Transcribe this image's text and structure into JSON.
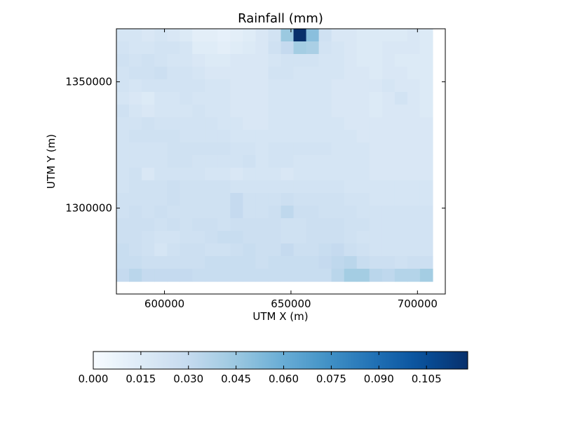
{
  "chart_data": {
    "type": "heatmap",
    "title": "Rainfall (mm)",
    "xlabel": "UTM X (m)",
    "ylabel": "UTM Y (m)",
    "x_ticks": [
      600000,
      650000,
      700000
    ],
    "x_tick_labels": [
      "600000",
      "650000",
      "700000"
    ],
    "y_ticks": [
      1300000,
      1350000
    ],
    "y_tick_labels": [
      "1300000",
      "1350000"
    ],
    "xlim": [
      581000,
      711000
    ],
    "ylim": [
      1266000,
      1371000
    ],
    "grid_x_range": [
      581000,
      706000
    ],
    "grid_y_range": [
      1271000,
      1371000
    ],
    "colormap": "Blues",
    "colormap_colors": [
      "#f7fbff",
      "#deebf7",
      "#c6dbef",
      "#9ecae1",
      "#6baed6",
      "#4292c6",
      "#2171b5",
      "#08519c",
      "#08306b"
    ],
    "colorbar": {
      "range": [
        0,
        0.118
      ],
      "ticks": [
        0,
        0.015,
        0.03,
        0.045,
        0.06,
        0.075,
        0.09,
        0.105
      ],
      "tick_labels": [
        "0.000",
        "0.015",
        "0.030",
        "0.045",
        "0.060",
        "0.075",
        "0.090",
        "0.105"
      ],
      "orientation": "horizontal",
      "placement": "bottom"
    },
    "grid": false,
    "values": [
      [
        0.02,
        0.02,
        0.018,
        0.02,
        0.018,
        0.016,
        0.012,
        0.012,
        0.01,
        0.012,
        0.014,
        0.018,
        0.022,
        0.045,
        0.118,
        0.05,
        0.024,
        0.018,
        0.018,
        0.016,
        0.016,
        0.016,
        0.016,
        0.018,
        0.016
      ],
      [
        0.022,
        0.02,
        0.02,
        0.022,
        0.022,
        0.02,
        0.014,
        0.014,
        0.012,
        0.014,
        0.016,
        0.018,
        0.024,
        0.03,
        0.042,
        0.04,
        0.022,
        0.02,
        0.018,
        0.016,
        0.016,
        0.018,
        0.018,
        0.018,
        0.016
      ],
      [
        0.024,
        0.022,
        0.024,
        0.022,
        0.02,
        0.02,
        0.018,
        0.016,
        0.016,
        0.018,
        0.018,
        0.018,
        0.02,
        0.022,
        0.022,
        0.022,
        0.02,
        0.02,
        0.018,
        0.016,
        0.016,
        0.018,
        0.016,
        0.016,
        0.016
      ],
      [
        0.022,
        0.024,
        0.024,
        0.026,
        0.022,
        0.022,
        0.02,
        0.018,
        0.018,
        0.018,
        0.018,
        0.018,
        0.022,
        0.022,
        0.02,
        0.02,
        0.02,
        0.02,
        0.018,
        0.018,
        0.016,
        0.018,
        0.018,
        0.016,
        0.016
      ],
      [
        0.022,
        0.02,
        0.022,
        0.022,
        0.022,
        0.022,
        0.022,
        0.02,
        0.02,
        0.018,
        0.018,
        0.018,
        0.02,
        0.02,
        0.02,
        0.02,
        0.02,
        0.018,
        0.018,
        0.018,
        0.018,
        0.02,
        0.018,
        0.018,
        0.016
      ],
      [
        0.02,
        0.018,
        0.016,
        0.02,
        0.02,
        0.022,
        0.02,
        0.02,
        0.02,
        0.018,
        0.018,
        0.018,
        0.02,
        0.02,
        0.02,
        0.02,
        0.02,
        0.018,
        0.018,
        0.018,
        0.016,
        0.018,
        0.022,
        0.018,
        0.016
      ],
      [
        0.024,
        0.02,
        0.018,
        0.02,
        0.02,
        0.02,
        0.022,
        0.02,
        0.02,
        0.018,
        0.018,
        0.018,
        0.02,
        0.02,
        0.02,
        0.02,
        0.02,
        0.018,
        0.018,
        0.018,
        0.016,
        0.018,
        0.018,
        0.018,
        0.016
      ],
      [
        0.022,
        0.022,
        0.024,
        0.022,
        0.022,
        0.022,
        0.022,
        0.022,
        0.02,
        0.02,
        0.018,
        0.018,
        0.02,
        0.02,
        0.02,
        0.02,
        0.02,
        0.02,
        0.018,
        0.018,
        0.018,
        0.018,
        0.018,
        0.018,
        0.018
      ],
      [
        0.022,
        0.024,
        0.024,
        0.024,
        0.024,
        0.022,
        0.022,
        0.022,
        0.022,
        0.02,
        0.02,
        0.02,
        0.02,
        0.02,
        0.02,
        0.02,
        0.02,
        0.02,
        0.02,
        0.018,
        0.018,
        0.018,
        0.018,
        0.018,
        0.018
      ],
      [
        0.022,
        0.022,
        0.022,
        0.022,
        0.024,
        0.024,
        0.024,
        0.024,
        0.024,
        0.022,
        0.022,
        0.02,
        0.022,
        0.022,
        0.022,
        0.022,
        0.022,
        0.02,
        0.02,
        0.02,
        0.018,
        0.018,
        0.018,
        0.018,
        0.018
      ],
      [
        0.022,
        0.022,
        0.022,
        0.022,
        0.024,
        0.024,
        0.022,
        0.022,
        0.022,
        0.022,
        0.024,
        0.02,
        0.022,
        0.022,
        0.02,
        0.02,
        0.02,
        0.02,
        0.02,
        0.02,
        0.018,
        0.018,
        0.018,
        0.018,
        0.018
      ],
      [
        0.022,
        0.024,
        0.018,
        0.022,
        0.022,
        0.022,
        0.022,
        0.02,
        0.02,
        0.018,
        0.02,
        0.02,
        0.02,
        0.018,
        0.02,
        0.02,
        0.02,
        0.02,
        0.02,
        0.02,
        0.018,
        0.018,
        0.018,
        0.018,
        0.018
      ],
      [
        0.022,
        0.024,
        0.024,
        0.024,
        0.026,
        0.024,
        0.024,
        0.024,
        0.024,
        0.022,
        0.022,
        0.022,
        0.022,
        0.022,
        0.022,
        0.022,
        0.022,
        0.022,
        0.02,
        0.02,
        0.02,
        0.02,
        0.02,
        0.02,
        0.02
      ],
      [
        0.024,
        0.024,
        0.024,
        0.024,
        0.026,
        0.024,
        0.024,
        0.024,
        0.024,
        0.03,
        0.024,
        0.024,
        0.024,
        0.026,
        0.024,
        0.024,
        0.024,
        0.024,
        0.022,
        0.022,
        0.02,
        0.02,
        0.02,
        0.02,
        0.02
      ],
      [
        0.024,
        0.026,
        0.024,
        0.026,
        0.024,
        0.024,
        0.024,
        0.024,
        0.024,
        0.03,
        0.024,
        0.024,
        0.026,
        0.032,
        0.026,
        0.026,
        0.024,
        0.024,
        0.024,
        0.022,
        0.022,
        0.022,
        0.022,
        0.022,
        0.022
      ],
      [
        0.026,
        0.026,
        0.026,
        0.024,
        0.026,
        0.024,
        0.026,
        0.026,
        0.024,
        0.026,
        0.026,
        0.026,
        0.026,
        0.024,
        0.024,
        0.026,
        0.026,
        0.026,
        0.024,
        0.024,
        0.022,
        0.022,
        0.022,
        0.022,
        0.022
      ],
      [
        0.026,
        0.026,
        0.024,
        0.022,
        0.022,
        0.024,
        0.024,
        0.026,
        0.028,
        0.028,
        0.026,
        0.026,
        0.026,
        0.024,
        0.024,
        0.026,
        0.026,
        0.026,
        0.024,
        0.022,
        0.022,
        0.022,
        0.022,
        0.022,
        0.022
      ],
      [
        0.028,
        0.026,
        0.024,
        0.02,
        0.024,
        0.026,
        0.026,
        0.024,
        0.024,
        0.026,
        0.028,
        0.026,
        0.026,
        0.03,
        0.026,
        0.026,
        0.028,
        0.03,
        0.026,
        0.024,
        0.022,
        0.022,
        0.022,
        0.022,
        0.022
      ],
      [
        0.028,
        0.028,
        0.026,
        0.026,
        0.026,
        0.026,
        0.026,
        0.028,
        0.028,
        0.028,
        0.028,
        0.026,
        0.028,
        0.028,
        0.028,
        0.028,
        0.03,
        0.032,
        0.034,
        0.028,
        0.026,
        0.026,
        0.024,
        0.026,
        0.026
      ],
      [
        0.03,
        0.034,
        0.03,
        0.03,
        0.03,
        0.03,
        0.028,
        0.028,
        0.028,
        0.028,
        0.028,
        0.028,
        0.028,
        0.028,
        0.028,
        0.028,
        0.028,
        0.034,
        0.042,
        0.042,
        0.034,
        0.032,
        0.036,
        0.036,
        0.042
      ]
    ]
  }
}
